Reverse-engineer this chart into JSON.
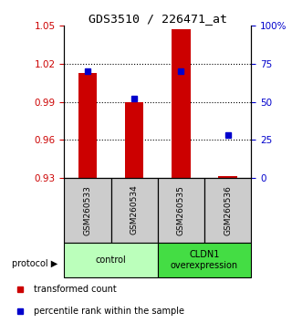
{
  "title": "GDS3510 / 226471_at",
  "samples": [
    "GSM260533",
    "GSM260534",
    "GSM260535",
    "GSM260536"
  ],
  "bar_values": [
    1.013,
    0.99,
    1.047,
    0.931
  ],
  "bar_baseline": 0.93,
  "bar_color": "#cc0000",
  "percentile_values": [
    70,
    52,
    70,
    28
  ],
  "percentile_color": "#0000cc",
  "ylim_left": [
    0.93,
    1.05
  ],
  "ylim_right": [
    0,
    100
  ],
  "yticks_left": [
    0.93,
    0.96,
    0.99,
    1.02,
    1.05
  ],
  "yticks_right": [
    0,
    25,
    50,
    75,
    100
  ],
  "ytick_labels_right": [
    "0",
    "25",
    "50",
    "75",
    "100%"
  ],
  "protocol_groups": [
    {
      "label": "control",
      "samples": [
        0,
        1
      ],
      "color": "#bbffbb"
    },
    {
      "label": "CLDN1\noverexpression",
      "samples": [
        2,
        3
      ],
      "color": "#44dd44"
    }
  ],
  "legend_items": [
    {
      "label": "transformed count",
      "color": "#cc0000"
    },
    {
      "label": "percentile rank within the sample",
      "color": "#0000cc"
    }
  ],
  "protocol_label": "protocol",
  "background_color": "#ffffff",
  "bar_width": 0.4,
  "ylabel_left_color": "#cc0000",
  "ylabel_right_color": "#0000cc"
}
